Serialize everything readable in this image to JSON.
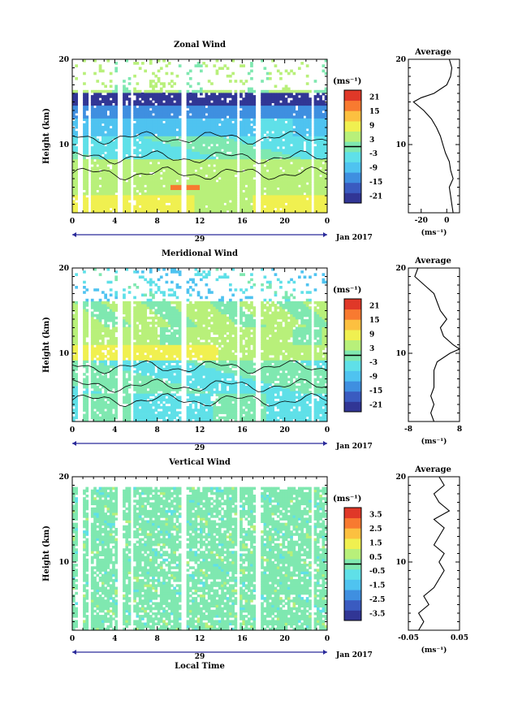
{
  "chart_data": [
    {
      "type": "heatmap",
      "title": "Zonal Wind",
      "ylabel": "Height (km)",
      "ylim": [
        2,
        20
      ],
      "xlim": [
        0,
        24
      ],
      "x_ticks": [
        "0",
        "4",
        "8",
        "12",
        "16",
        "20",
        "0"
      ],
      "y_ticks": [
        "20",
        "10"
      ],
      "date_label": "29",
      "month_label": "Jan 2017",
      "colorbar": {
        "unit": "(ms⁻¹)",
        "ticks": [
          "21",
          "15",
          "9",
          "3",
          "-3",
          "-9",
          "-15",
          "-21"
        ],
        "range": [
          -24,
          24
        ]
      },
      "profile": {
        "title": "Average",
        "xlabel": "(ms⁻¹)",
        "x_ticks": [
          "-20",
          "0"
        ],
        "xlim": [
          -30,
          10
        ],
        "y_ticks": [
          "20",
          "10"
        ],
        "height": [
          2,
          3,
          4,
          5,
          6,
          7,
          8,
          9,
          10,
          11,
          12,
          13,
          14,
          15,
          15.5,
          16,
          17,
          18,
          19,
          20
        ],
        "values": [
          5,
          4,
          3,
          2,
          5,
          3,
          2,
          -1,
          -3,
          -5,
          -8,
          -12,
          -18,
          -26,
          -20,
          -10,
          0,
          3,
          4,
          2
        ]
      }
    },
    {
      "type": "heatmap",
      "title": "Meridional Wind",
      "ylabel": "Height (km)",
      "ylim": [
        2,
        20
      ],
      "xlim": [
        0,
        24
      ],
      "x_ticks": [
        "0",
        "4",
        "8",
        "12",
        "16",
        "20",
        "0"
      ],
      "y_ticks": [
        "20",
        "10"
      ],
      "date_label": "29",
      "month_label": "Jan 2017",
      "colorbar": {
        "unit": "(ms⁻¹)",
        "ticks": [
          "21",
          "15",
          "9",
          "3",
          "-3",
          "-9",
          "-15",
          "-21"
        ],
        "range": [
          -24,
          24
        ]
      },
      "profile": {
        "title": "Average",
        "xlabel": "(ms⁻¹)",
        "x_ticks": [
          "-8",
          "8"
        ],
        "xlim": [
          -8,
          8
        ],
        "y_ticks": [
          "20",
          "10"
        ],
        "height": [
          2,
          3,
          4,
          5,
          6,
          7,
          8,
          9,
          10,
          10.5,
          11,
          12,
          13,
          14,
          15,
          16,
          17,
          18,
          19,
          20
        ],
        "values": [
          0,
          -1,
          0,
          -1,
          0,
          0,
          0,
          1,
          5,
          8,
          6,
          3,
          2,
          4,
          2,
          1,
          0,
          -3,
          -6,
          -5
        ]
      }
    },
    {
      "type": "heatmap",
      "title": "Vertical Wind",
      "xlabel": "Local Time",
      "ylabel": "Height (km)",
      "ylim": [
        2,
        20
      ],
      "xlim": [
        0,
        24
      ],
      "x_ticks": [
        "0",
        "4",
        "8",
        "12",
        "16",
        "20",
        "0"
      ],
      "y_ticks": [
        "20",
        "10"
      ],
      "date_label": "29",
      "month_label": "Jan 2017",
      "colorbar": {
        "unit": "(ms⁻¹)",
        "ticks": [
          "3.5",
          "2.5",
          "1.5",
          "0.5",
          "-0.5",
          "-1.5",
          "-2.5",
          "-3.5"
        ],
        "range": [
          -4,
          4
        ]
      },
      "profile": {
        "title": "Average",
        "xlabel": "(ms⁻¹)",
        "x_ticks": [
          "-0.05",
          "0.05"
        ],
        "xlim": [
          -0.05,
          0.05
        ],
        "y_ticks": [
          "20",
          "10"
        ],
        "height": [
          2,
          3,
          4,
          5,
          6,
          7,
          8,
          9,
          10,
          11,
          12,
          13,
          14,
          15,
          16,
          17,
          18,
          19,
          20
        ],
        "values": [
          -0.03,
          -0.02,
          -0.03,
          -0.01,
          -0.02,
          0.0,
          0.01,
          0.02,
          0.01,
          0.02,
          0.0,
          0.01,
          0.02,
          0.0,
          0.03,
          0.01,
          0.0,
          0.02,
          0.01
        ]
      }
    }
  ],
  "colors": {
    "palette": [
      "#313695",
      "#3a5bc0",
      "#3f8fe0",
      "#4fc3f0",
      "#5fe0e8",
      "#7fe8b0",
      "#b8f07a",
      "#f0f050",
      "#fcc040",
      "#f87a30",
      "#e03828"
    ]
  }
}
